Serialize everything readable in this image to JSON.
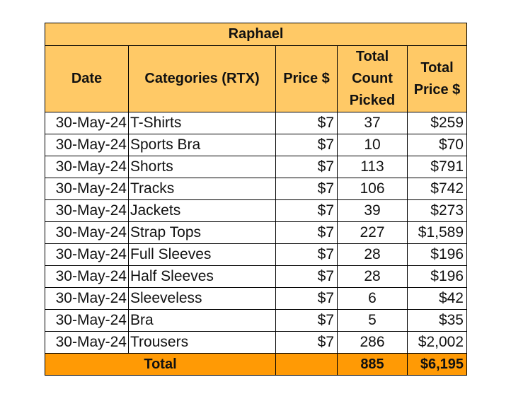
{
  "sheet": {
    "title": "Raphael",
    "colors": {
      "header_fill": "#FFC966",
      "total_fill": "#FF9A05",
      "body_fill": "#FFFFFF",
      "border": "#000000"
    },
    "headers": {
      "date": "Date",
      "category": "Categories (RTX)",
      "price": "Price $",
      "count_line1": "Total",
      "count_line2": "Count",
      "count_line3": "Picked",
      "total_line1": "Total",
      "total_line2": "Price $"
    },
    "rows": [
      {
        "date": "30-May-24",
        "category": "T-Shirts",
        "price": "$7",
        "count": "37",
        "total": "$259"
      },
      {
        "date": "30-May-24",
        "category": "Sports Bra",
        "price": "$7",
        "count": "10",
        "total": "$70"
      },
      {
        "date": "30-May-24",
        "category": "Shorts",
        "price": "$7",
        "count": "113",
        "total": "$791"
      },
      {
        "date": "30-May-24",
        "category": "Tracks",
        "price": "$7",
        "count": "106",
        "total": "$742"
      },
      {
        "date": "30-May-24",
        "category": "Jackets",
        "price": "$7",
        "count": "39",
        "total": "$273"
      },
      {
        "date": "30-May-24",
        "category": "Strap Tops",
        "price": "$7",
        "count": "227",
        "total": "$1,589"
      },
      {
        "date": "30-May-24",
        "category": "Full Sleeves",
        "price": "$7",
        "count": "28",
        "total": "$196"
      },
      {
        "date": "30-May-24",
        "category": "Half Sleeves",
        "price": "$7",
        "count": "28",
        "total": "$196"
      },
      {
        "date": "30-May-24",
        "category": "Sleeveless",
        "price": "$7",
        "count": "6",
        "total": "$42"
      },
      {
        "date": "30-May-24",
        "category": "Bra",
        "price": "$7",
        "count": "5",
        "total": "$35"
      },
      {
        "date": "30-May-24",
        "category": "Trousers",
        "price": "$7",
        "count": "286",
        "total": "$2,002"
      }
    ],
    "totals": {
      "label": "Total",
      "price": "",
      "count": "885",
      "total": "$6,195"
    }
  }
}
